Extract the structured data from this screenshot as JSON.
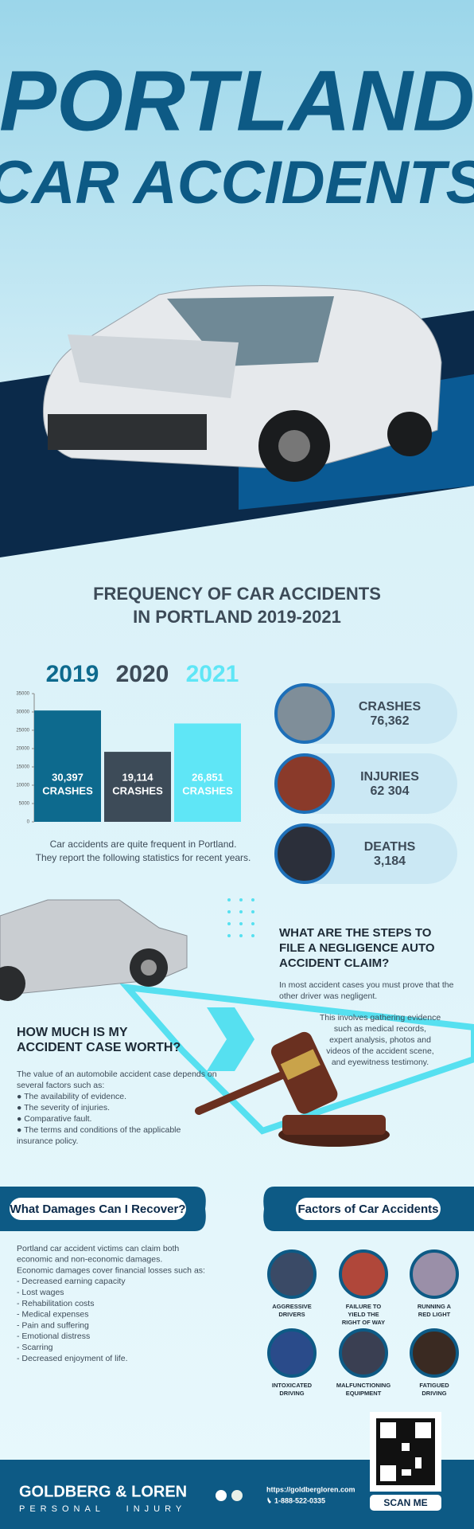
{
  "header": {
    "title_line1": "PORTLAND",
    "title_line2": "CAR ACCIDENTS"
  },
  "frequency_heading": [
    "FREQUENCY OF CAR ACCIDENTS",
    "IN PORTLAND 2019-2021"
  ],
  "chart_data": {
    "type": "bar",
    "categories": [
      "2019",
      "2020",
      "2021"
    ],
    "values": [
      30397,
      19114,
      26851
    ],
    "value_labels": [
      "30,397",
      "19,114",
      "26,851"
    ],
    "value_unit": "CRASHES",
    "colors": [
      "#0d6a8e",
      "#3d4b58",
      "#5fe6f6"
    ],
    "ylim": [
      0,
      35000
    ],
    "yticks": [
      0,
      5000,
      10000,
      15000,
      20000,
      25000,
      30000,
      35000
    ]
  },
  "chart_caption": [
    "Car accidents are quite frequent in Portland.",
    "They report the following statistics for recent years."
  ],
  "stats": [
    {
      "label": "CRASHES",
      "value": "76,362"
    },
    {
      "label": "INJURIES",
      "value": "62 304"
    },
    {
      "label": "DEATHS",
      "value": "3,184"
    }
  ],
  "steps": {
    "heading": [
      "WHAT ARE THE STEPS TO",
      "FILE A NEGLIGENCE AUTO",
      "ACCIDENT CLAIM?"
    ],
    "para1": [
      "In most accident cases you must prove that the",
      "other driver was negligent."
    ],
    "para2": [
      "This involves gathering evidence",
      "such as medical records,",
      "expert analysis, photos and",
      "videos of the accident scene,",
      "and eyewitness testimony."
    ]
  },
  "worth": {
    "heading": [
      "HOW MUCH IS MY",
      "ACCIDENT CASE WORTH?"
    ],
    "lines": [
      "The value of an automobile accident case depends on",
      "several factors such as:",
      "● The availability of evidence.",
      "● The severity of injuries.",
      "● Comparative fault.",
      "● The terms and conditions of the applicable",
      "   insurance policy."
    ]
  },
  "damages": {
    "title": "What Damages Can I Recover?",
    "lines": [
      "Portland car accident victims can claim both",
      "economic and non-economic damages.",
      "Economic damages cover financial losses such as:",
      "- Decreased earning capacity",
      "- Lost wages",
      "- Rehabilitation costs",
      "- Medical expenses",
      "- Pain and suffering",
      "- Emotional distress",
      "- Scarring",
      "- Decreased enjoyment of life."
    ]
  },
  "factors": {
    "title": "Factors of Car Accidents",
    "items": [
      [
        "AGGRESSIVE",
        "DRIVERS"
      ],
      [
        "FAILURE TO",
        "YIELD THE",
        "RIGHT OF WAY"
      ],
      [
        "RUNNING A",
        "RED LIGHT"
      ],
      [
        "INTOXICATED",
        "DRIVING"
      ],
      [
        "MALFUNCTIONING",
        "EQUIPMENT"
      ],
      [
        "FATIGUED",
        "DRIVING"
      ]
    ]
  },
  "qr": {
    "label": "SCAN ME"
  },
  "footer": {
    "brand": "GOLDBERG & LOREN",
    "tagline": "PERSONAL   INJURY",
    "url": "https://goldbergloren.com",
    "phone": "1-888-522-0335"
  }
}
